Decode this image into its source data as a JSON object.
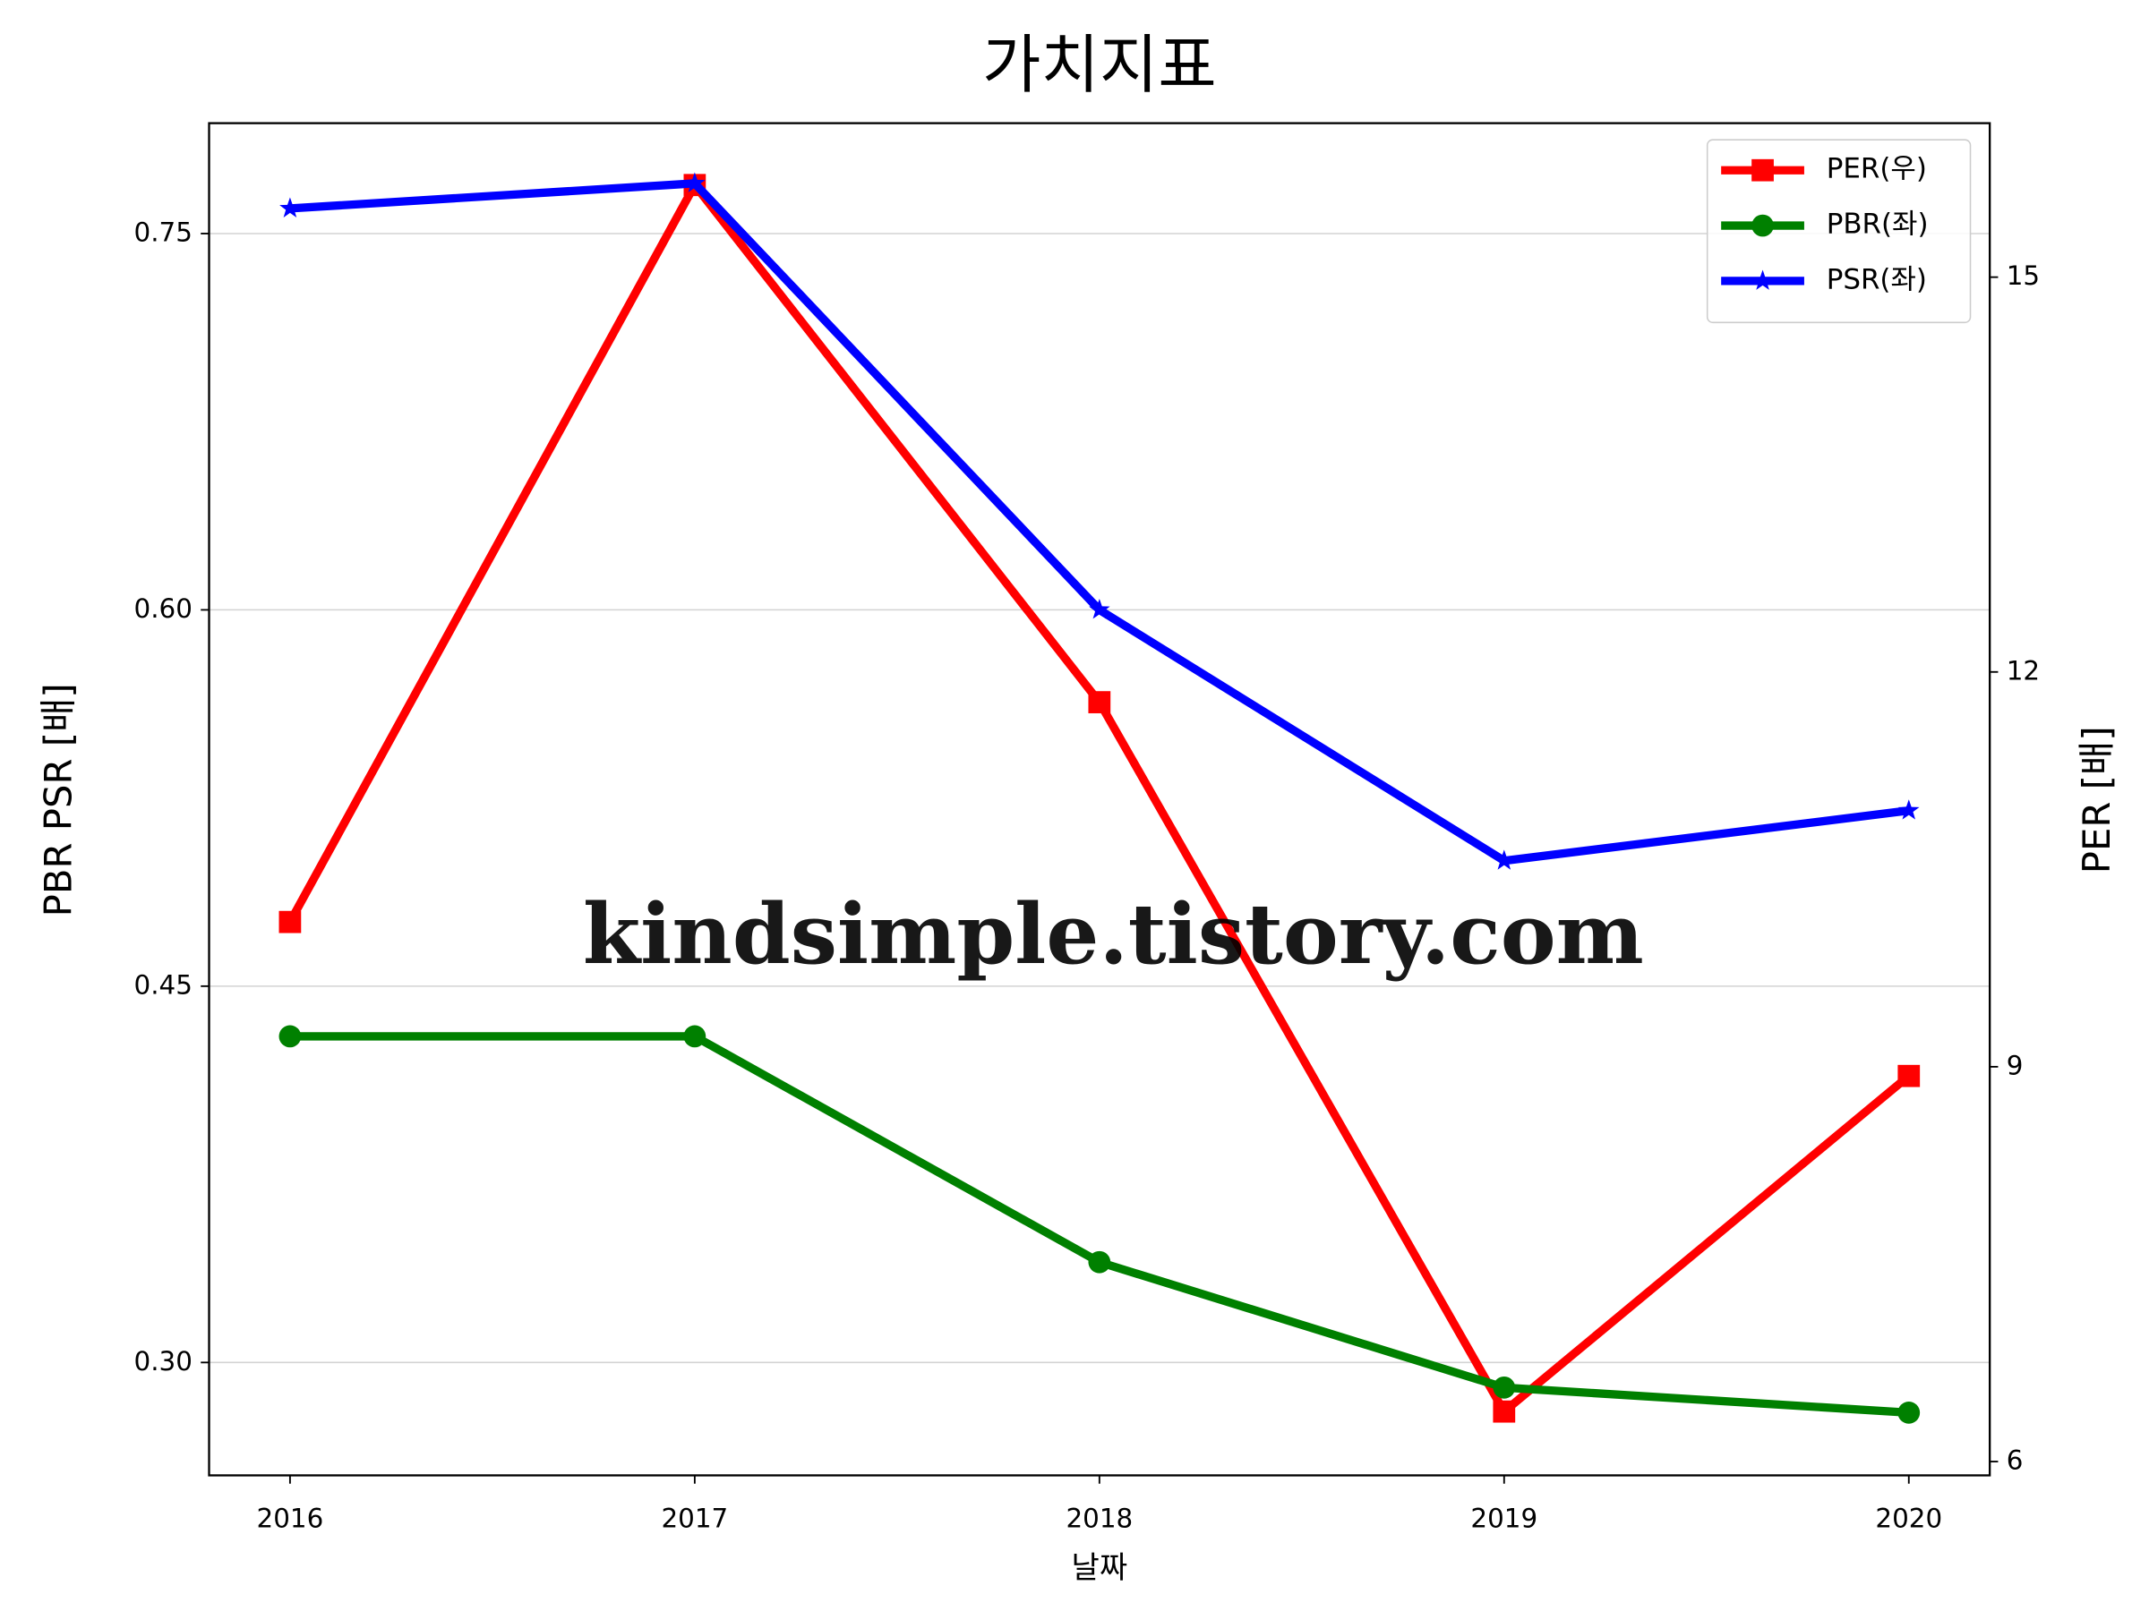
{
  "chart_data": {
    "type": "line",
    "title": "가치지표",
    "xlabel": "날짜",
    "ylabel": "PBR PSR [배]",
    "y2label": "PER [배]",
    "ylabel_color": "#008000",
    "y2label_color": "#ff0000",
    "annotation": "kindsimple.tistory.com",
    "x": [
      2016,
      2017,
      2018,
      2019,
      2020
    ],
    "xlim": [
      2015.8,
      2020.2
    ],
    "xticks": [
      2016,
      2017,
      2018,
      2019,
      2020
    ],
    "ylim": [
      0.255,
      0.794
    ],
    "yticks": [
      {
        "value": 0.3,
        "label": "0.30"
      },
      0.45,
      {
        "value": 0.6,
        "label": "0.60"
      },
      0.75
    ],
    "y2lim": [
      5.895,
      16.17
    ],
    "y2ticks": [
      6,
      9,
      12,
      15
    ],
    "grid": true,
    "legend": "upper right",
    "series": [
      {
        "name": "PER(우)",
        "color": "#ff0000",
        "marker": "square",
        "axis": "y2",
        "values": [
          10.1,
          15.7,
          11.77,
          6.38,
          8.93
        ]
      },
      {
        "name": "PBR(좌)",
        "color": "#008000",
        "marker": "circle",
        "values": [
          0.43,
          0.43,
          0.34,
          0.29,
          0.28
        ]
      },
      {
        "name": "PSR(좌)",
        "color": "#0000ff",
        "marker": "star",
        "values": [
          0.76,
          0.77,
          0.6,
          0.5,
          0.52
        ]
      }
    ]
  }
}
